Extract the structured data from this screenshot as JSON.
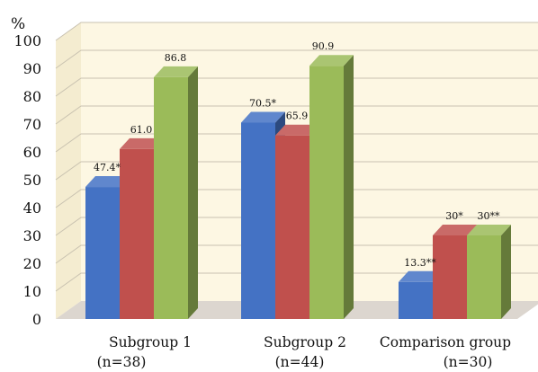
{
  "chart_data": {
    "type": "bar",
    "ylabel": "%",
    "ylim": [
      0,
      100
    ],
    "yticks": [
      "0",
      "10",
      "20",
      "30",
      "40",
      "50",
      "60",
      "70",
      "80",
      "90",
      "100"
    ],
    "categories": [
      {
        "line1": "Subgroup 1",
        "line2": "(n=38)"
      },
      {
        "line1": "Subgroup 2",
        "line2": "(n=44)"
      },
      {
        "line1": "Comparison group",
        "line2": "(n=30)"
      }
    ],
    "series": [
      {
        "color": "#4472c4",
        "values": [
          47.4,
          70.5,
          13.3
        ],
        "labels": [
          "47.4*",
          "70.5*",
          "13.3**"
        ]
      },
      {
        "color": "#c0504d",
        "values": [
          61.0,
          65.9,
          30
        ],
        "labels": [
          "61.0",
          "65.9",
          "30*"
        ]
      },
      {
        "color": "#9bbb59",
        "values": [
          86.8,
          90.9,
          30
        ],
        "labels": [
          "86.8",
          "90.9",
          "30**"
        ]
      }
    ],
    "grid": true,
    "legend": "none",
    "style": "3d-column"
  }
}
